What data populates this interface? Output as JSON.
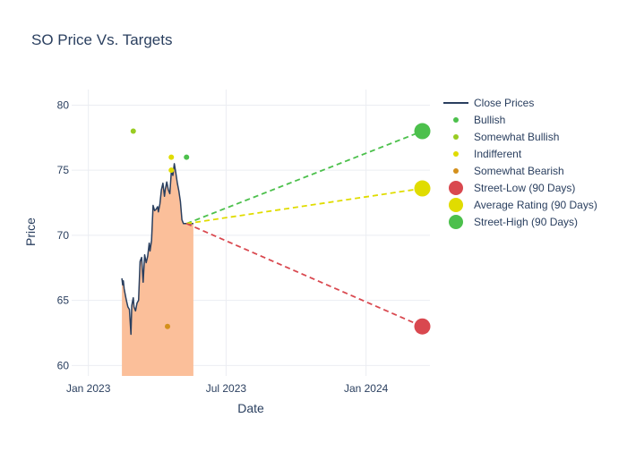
{
  "chart_data": {
    "type": "line",
    "title": "SO Price Vs. Targets",
    "xlabel": "Date",
    "ylabel": "Price",
    "ylim": [
      59.2,
      81.2
    ],
    "xlim": [
      "2022-12-10",
      "2024-03-25"
    ],
    "grid": true,
    "legend_position": "top-right, outside plot",
    "x_ticks": [
      {
        "date": "2023-01-01",
        "label": "Jan 2023"
      },
      {
        "date": "2023-07-01",
        "label": "Jul 2023"
      },
      {
        "date": "2024-01-01",
        "label": "Jan 2024"
      }
    ],
    "y_ticks": [
      60,
      65,
      70,
      75,
      80
    ],
    "colors": {
      "close": "#2a3f5f",
      "fill": "#fbbf9a",
      "bullish": "#4cc04c",
      "somewhat_bullish": "#99cc22",
      "indifferent": "#e0dc00",
      "somewhat_bearish": "#d4901c",
      "street_low": "#d9484f",
      "average": "#e0dc00",
      "street_high": "#4cc04c",
      "title": "#2a3f5f",
      "grid": "#ebedf2"
    },
    "close_series": {
      "name": "Close Prices",
      "x": [
        "2023-02-14",
        "2023-02-15",
        "2023-02-16",
        "2023-02-17",
        "2023-02-18",
        "2023-02-20",
        "2023-02-22",
        "2023-02-24",
        "2023-02-26",
        "2023-02-27",
        "2023-02-28",
        "2023-03-01",
        "2023-03-02",
        "2023-03-04",
        "2023-03-06",
        "2023-03-08",
        "2023-03-10",
        "2023-03-12",
        "2023-03-14",
        "2023-03-16",
        "2023-03-18",
        "2023-03-20",
        "2023-03-22",
        "2023-03-23",
        "2023-03-25",
        "2023-03-27",
        "2023-03-29",
        "2023-03-31",
        "2023-04-02",
        "2023-04-03",
        "2023-04-05",
        "2023-04-07",
        "2023-04-09",
        "2023-04-11",
        "2023-04-12",
        "2023-04-14",
        "2023-04-16",
        "2023-04-18",
        "2023-04-20",
        "2023-04-22",
        "2023-04-24",
        "2023-04-26",
        "2023-04-28",
        "2023-04-30",
        "2023-05-02",
        "2023-05-04",
        "2023-05-06",
        "2023-05-08",
        "2023-05-10",
        "2023-05-12",
        "2023-05-14",
        "2023-05-16",
        "2023-05-17",
        "2023-05-19"
      ],
      "y": [
        66.7,
        66.2,
        66.5,
        65.9,
        65.6,
        65.0,
        64.5,
        64.3,
        62.4,
        64.6,
        64.9,
        65.2,
        64.5,
        64.2,
        64.8,
        65.0,
        68.0,
        68.3,
        66.4,
        68.5,
        67.9,
        68.4,
        69.4,
        68.8,
        69.6,
        72.3,
        71.9,
        72.0,
        72.2,
        71.8,
        72.4,
        73.5,
        74.0,
        73.0,
        73.5,
        74.1,
        73.5,
        73.2,
        74.9,
        74.6,
        75.5,
        74.8,
        74.0,
        73.4,
        72.6,
        71.2,
        70.9,
        70.9,
        70.9,
        70.9,
        70.9,
        70.9,
        70.9,
        70.9
      ]
    },
    "rating_points": [
      {
        "category": "Bullish",
        "date": "2023-05-10",
        "value": 76
      },
      {
        "category": "Somewhat Bullish",
        "date": "2023-03-01",
        "value": 78
      },
      {
        "category": "Indifferent",
        "date": "2023-04-20",
        "value": 76
      },
      {
        "category": "Indifferent",
        "date": "2023-04-20",
        "value": 75
      },
      {
        "category": "Somewhat Bearish",
        "date": "2023-04-15",
        "value": 63
      }
    ],
    "target_lines": {
      "start_date": "2023-05-10",
      "start_value": 70.9,
      "end_date": "2024-03-15",
      "street_low": 63,
      "average": 73.6,
      "street_high": 78
    },
    "legend": [
      {
        "label": "Close Prices",
        "kind": "line",
        "color_key": "close"
      },
      {
        "label": "Bullish",
        "kind": "dot",
        "color_key": "bullish"
      },
      {
        "label": "Somewhat Bullish",
        "kind": "dot",
        "color_key": "somewhat_bullish"
      },
      {
        "label": "Indifferent",
        "kind": "dot",
        "color_key": "indifferent"
      },
      {
        "label": "Somewhat Bearish",
        "kind": "dot",
        "color_key": "somewhat_bearish"
      },
      {
        "label": "Street-Low (90 Days)",
        "kind": "bigdot",
        "color_key": "street_low"
      },
      {
        "label": "Average Rating (90 Days)",
        "kind": "bigdot",
        "color_key": "average"
      },
      {
        "label": "Street-High (90 Days)",
        "kind": "bigdot",
        "color_key": "street_high"
      }
    ]
  }
}
